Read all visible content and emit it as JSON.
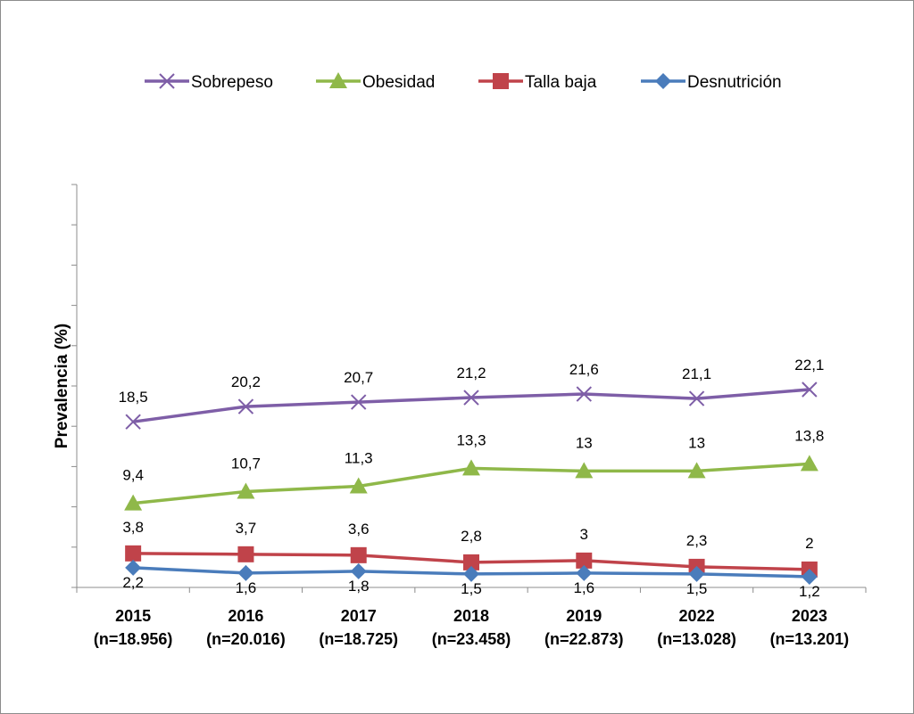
{
  "chart_data": {
    "type": "line",
    "title": "",
    "xlabel": "",
    "ylabel": "Prevalencia (%)",
    "ylim": [
      0,
      45
    ],
    "y_tick_count": 10,
    "legend_position": "top",
    "grid": false,
    "categories": [
      [
        "2015",
        "(n=18.956)"
      ],
      [
        "2016",
        "(n=20.016)"
      ],
      [
        "2017",
        "(n=18.725)"
      ],
      [
        "2018",
        "(n=23.458)"
      ],
      [
        "2019",
        "(n=22.873)"
      ],
      [
        "2022",
        "(n=13.028)"
      ],
      [
        "2023",
        "(n=13.201)"
      ]
    ],
    "series": [
      {
        "name": "Sobrepeso",
        "color": "#7e5ea7",
        "marker": "x",
        "values": [
          18.5,
          20.2,
          20.7,
          21.2,
          21.6,
          21.1,
          22.1
        ],
        "labels": [
          "18,5",
          "20,2",
          "20,7",
          "21,2",
          "21,6",
          "21,1",
          "22,1"
        ]
      },
      {
        "name": "Obesidad",
        "color": "#8fb849",
        "marker": "triangle",
        "values": [
          9.4,
          10.7,
          11.3,
          13.3,
          13,
          13,
          13.8
        ],
        "labels": [
          "9,4",
          "10,7",
          "11,3",
          "13,3",
          "13",
          "13",
          "13,8"
        ]
      },
      {
        "name": "Talla baja",
        "color": "#c0434a",
        "marker": "square",
        "values": [
          3.8,
          3.7,
          3.6,
          2.8,
          3,
          2.3,
          2
        ],
        "labels": [
          "3,8",
          "3,7",
          "3,6",
          "2,8",
          "3",
          "2,3",
          "2"
        ]
      },
      {
        "name": "Desnutrición",
        "color": "#4a7cbb",
        "marker": "diamond",
        "values": [
          2.2,
          1.6,
          1.8,
          1.5,
          1.6,
          1.5,
          1.2
        ],
        "labels": [
          "2,2",
          "1,6",
          "1,8",
          "1,5",
          "1,6",
          "1,5",
          "1,2"
        ]
      }
    ]
  }
}
